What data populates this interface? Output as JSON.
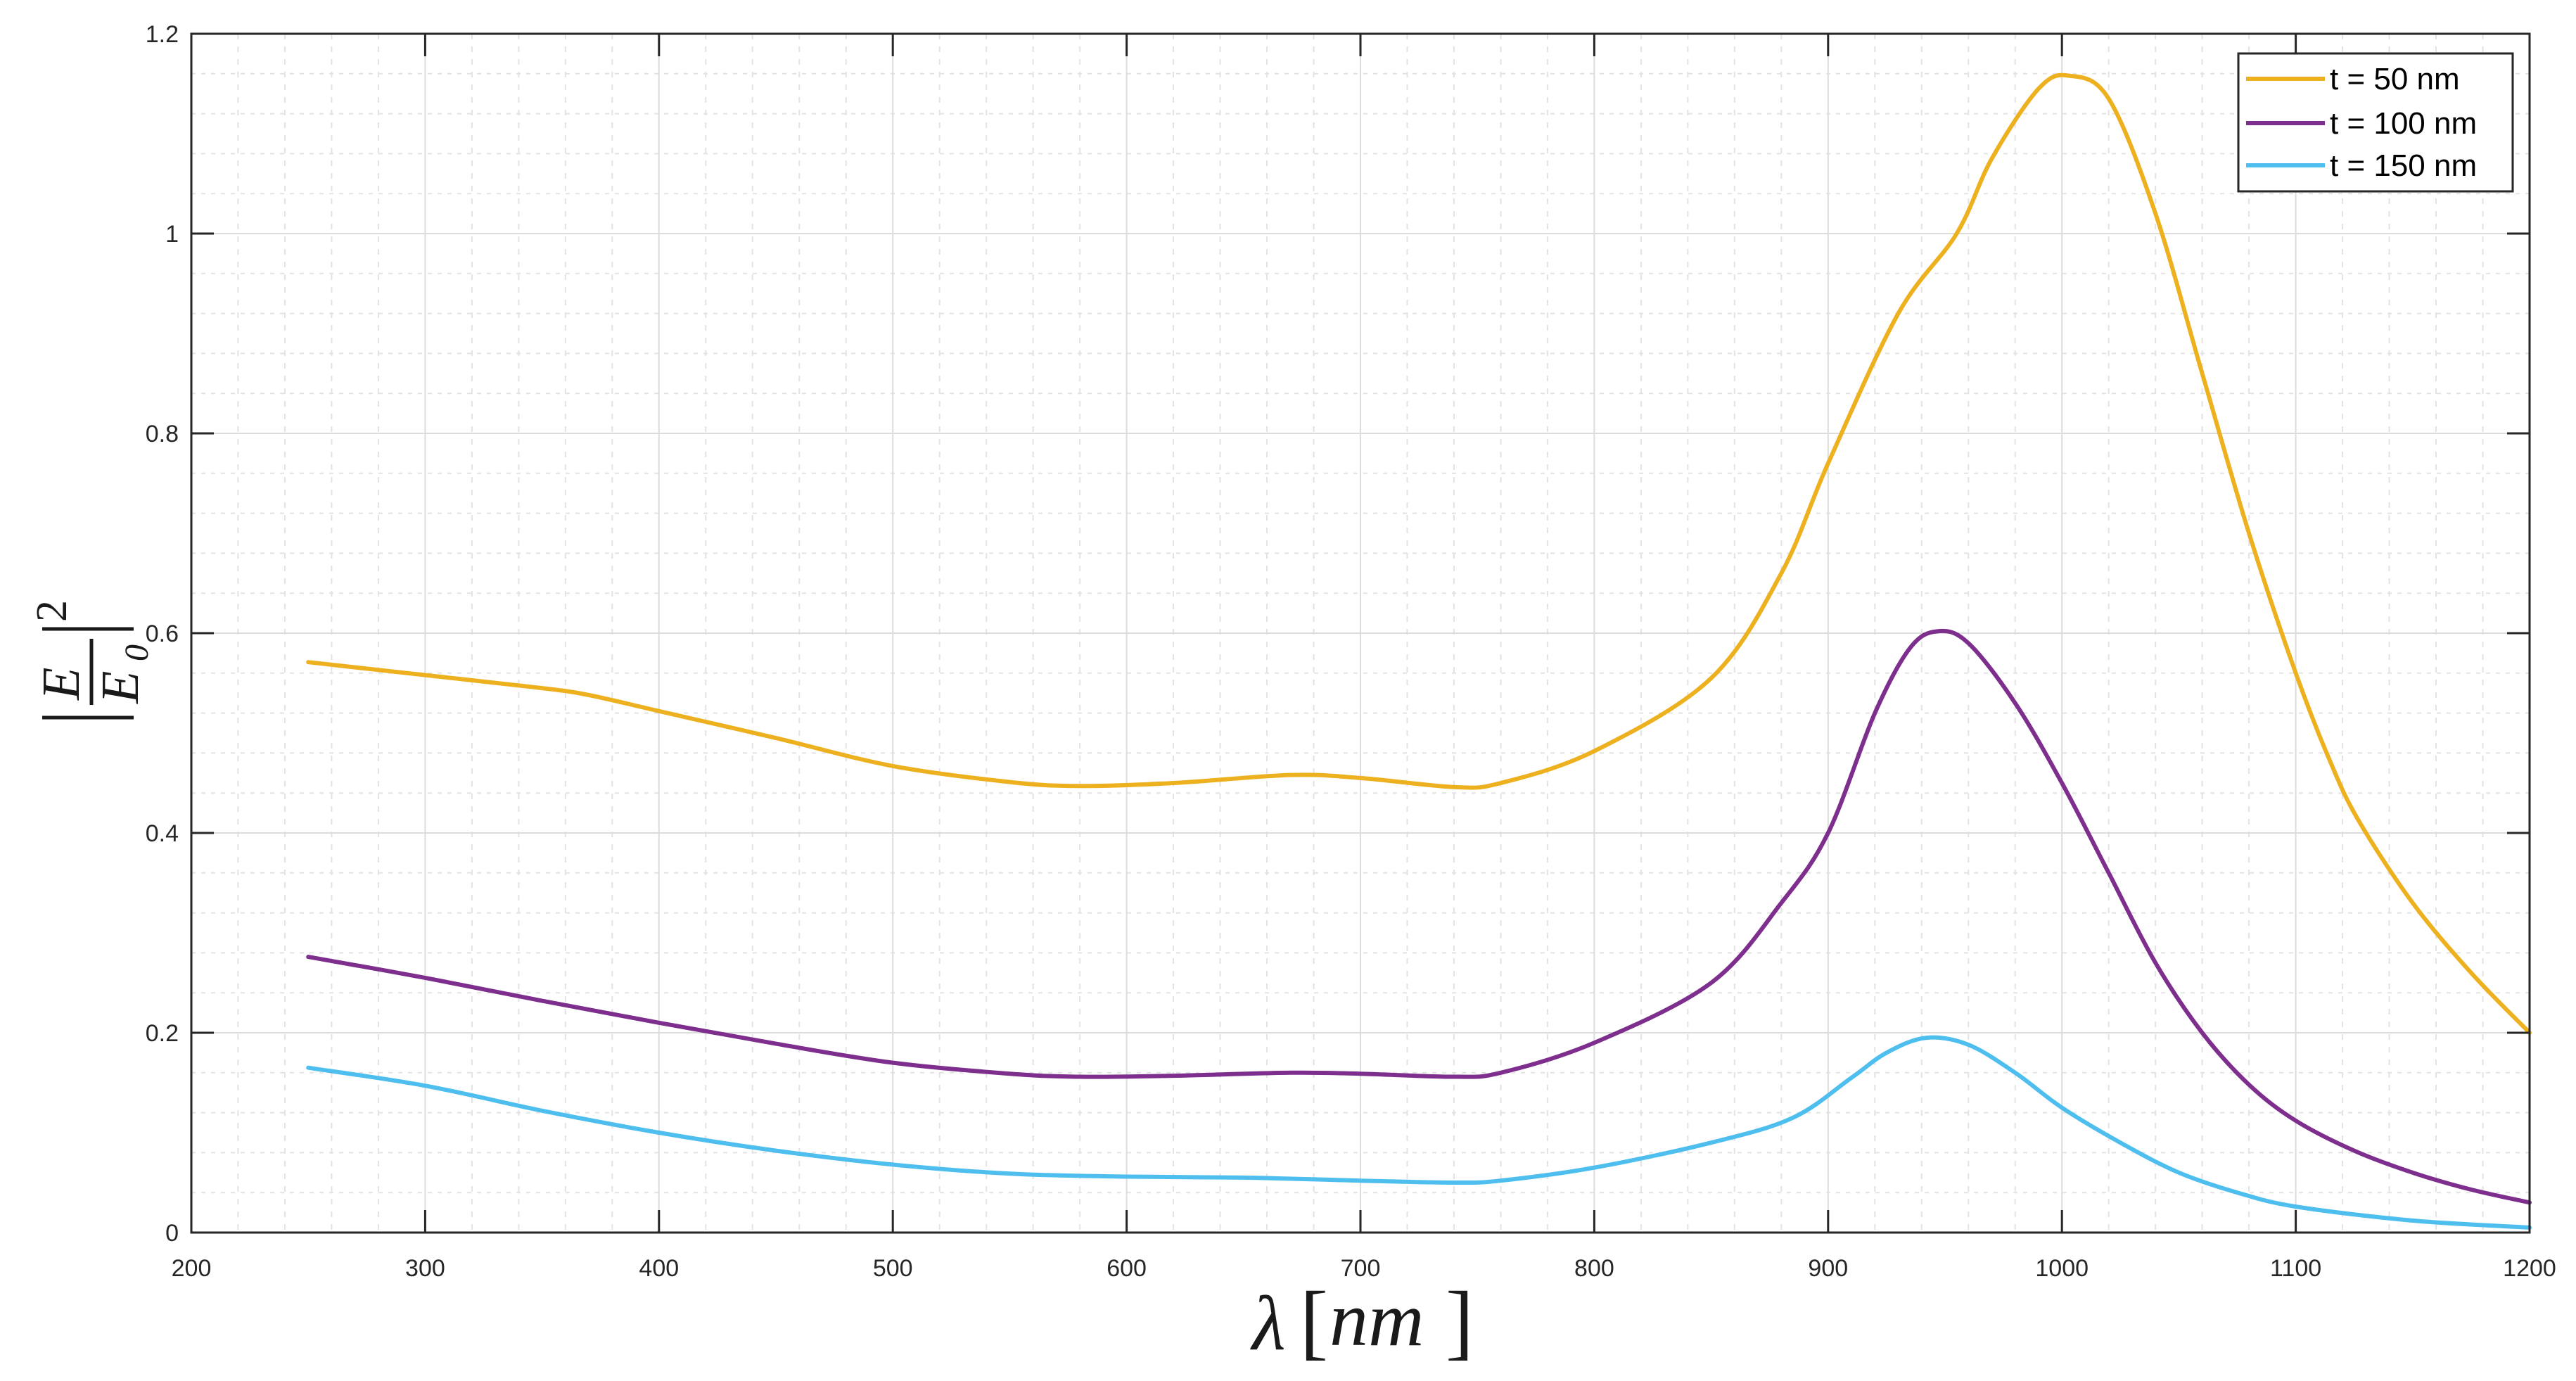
{
  "chart_data": {
    "type": "line",
    "title": "",
    "xlabel": "λ [nm]",
    "ylabel": "|E/E0|^2",
    "xlim": [
      200,
      1200
    ],
    "ylim": [
      0,
      1.2
    ],
    "x_ticks": [
      200,
      300,
      400,
      500,
      600,
      700,
      800,
      900,
      1000,
      1100,
      1200
    ],
    "x_tick_labels": [
      "200",
      "300",
      "400",
      "500",
      "600",
      "700",
      "800",
      "900",
      "1000",
      "1100",
      "1200"
    ],
    "y_ticks": [
      0,
      0.2,
      0.4,
      0.6,
      0.8,
      1,
      1.2
    ],
    "y_tick_labels": [
      "0",
      "0.2",
      "0.4",
      "0.6",
      "0.8",
      "1",
      "1.2"
    ],
    "grid": true,
    "minor_grid": true,
    "legend_position": "upper right",
    "series": [
      {
        "name": "t = 50 nm",
        "color": "#EDB120",
        "x": [
          250,
          300,
          350,
          370,
          400,
          450,
          500,
          550,
          580,
          620,
          670,
          700,
          740,
          760,
          800,
          850,
          880,
          900,
          930,
          955,
          970,
          990,
          1003,
          1020,
          1040,
          1060,
          1080,
          1100,
          1115,
          1127,
          1150,
          1175,
          1200
        ],
        "values": [
          0.571,
          0.558,
          0.545,
          0.538,
          0.522,
          0.495,
          0.467,
          0.451,
          0.447,
          0.45,
          0.458,
          0.455,
          0.446,
          0.45,
          0.482,
          0.555,
          0.66,
          0.77,
          0.92,
          1.0,
          1.075,
          1.145,
          1.158,
          1.135,
          1.02,
          0.86,
          0.7,
          0.56,
          0.47,
          0.412,
          0.33,
          0.26,
          0.2
        ]
      },
      {
        "name": "t = 100 nm",
        "color": "#7E2F8E",
        "x": [
          250,
          300,
          350,
          400,
          450,
          500,
          550,
          580,
          620,
          670,
          700,
          740,
          760,
          800,
          850,
          880,
          900,
          920,
          935,
          947,
          960,
          980,
          1000,
          1020,
          1040,
          1060,
          1080,
          1100,
          1125,
          1150,
          1175,
          1200
        ],
        "values": [
          0.276,
          0.255,
          0.232,
          0.21,
          0.189,
          0.17,
          0.159,
          0.156,
          0.157,
          0.16,
          0.159,
          0.156,
          0.16,
          0.19,
          0.25,
          0.33,
          0.4,
          0.52,
          0.585,
          0.602,
          0.59,
          0.53,
          0.45,
          0.36,
          0.27,
          0.2,
          0.148,
          0.112,
          0.082,
          0.06,
          0.043,
          0.03
        ]
      },
      {
        "name": "t = 150 nm",
        "color": "#4DBEEE",
        "x": [
          250,
          300,
          350,
          400,
          450,
          500,
          550,
          600,
          650,
          700,
          740,
          760,
          800,
          850,
          885,
          910,
          925,
          942,
          960,
          980,
          1000,
          1025,
          1050,
          1075,
          1100,
          1150,
          1200
        ],
        "values": [
          0.165,
          0.147,
          0.122,
          0.1,
          0.082,
          0.068,
          0.059,
          0.056,
          0.055,
          0.052,
          0.05,
          0.052,
          0.065,
          0.09,
          0.115,
          0.155,
          0.18,
          0.195,
          0.188,
          0.16,
          0.125,
          0.09,
          0.06,
          0.04,
          0.026,
          0.012,
          0.005
        ]
      }
    ]
  },
  "axes": {
    "xlabel_lambda": "λ",
    "xlabel_unit": "nm",
    "ylabel_num": "E",
    "ylabel_den": "E",
    "ylabel_den_sub": "0",
    "ylabel_power": "2"
  },
  "legend": {
    "entries": [
      "t = 50 nm",
      "t = 100 nm",
      "t = 150 nm"
    ]
  },
  "colors": {
    "axis": "#262626",
    "major_grid": "#dcdcdc",
    "minor_grid": "#e3e3e3"
  }
}
